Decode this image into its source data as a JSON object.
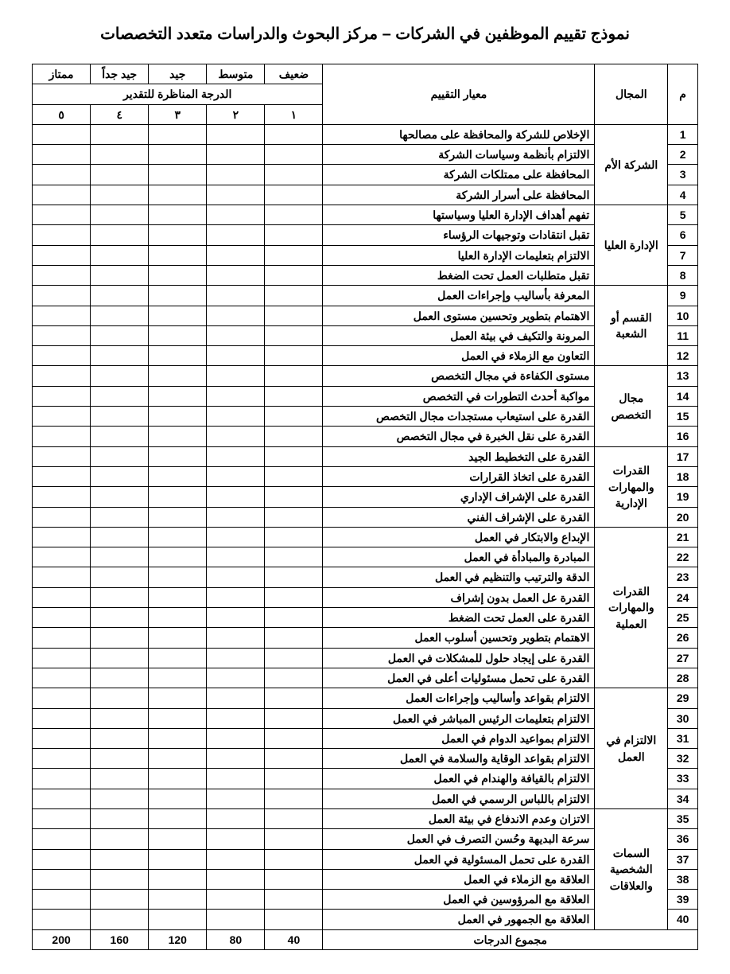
{
  "title": "نموذج تقييم الموظفين في الشركات – مركز البحوث والدراسات متعدد التخصصات",
  "headers": {
    "num": "م",
    "domain": "المجال",
    "criterion": "معيار التقييم",
    "corresponding": "الدرجة المناظرة للتقدير",
    "ratings": [
      "ضعيف",
      "متوسط",
      "جيد",
      "جيد جداً",
      "ممتاز"
    ],
    "numbers": [
      "١",
      "٢",
      "٣",
      "٤",
      "٥"
    ]
  },
  "groups": [
    {
      "domain": "الشركة الأم",
      "rows": [
        {
          "n": "1",
          "c": "الإخلاص للشركة والمحافظة على مصالحها"
        },
        {
          "n": "2",
          "c": "الالتزام بأنظمة وسياسات الشركة"
        },
        {
          "n": "3",
          "c": "المحافظة على ممتلكات الشركة"
        },
        {
          "n": "4",
          "c": "المحافظة على أسرار الشركة"
        }
      ]
    },
    {
      "domain": "الإدارة العليا",
      "rows": [
        {
          "n": "5",
          "c": "تفهم أهداف الإدارة العليا وسياستها"
        },
        {
          "n": "6",
          "c": "تقبل انتقادات وتوجيهات الرؤساء"
        },
        {
          "n": "7",
          "c": "الالتزام بتعليمات الإدارة العليا"
        },
        {
          "n": "8",
          "c": "تقبل متطلبات العمل تحت الضغط"
        }
      ]
    },
    {
      "domain": "القسم أو الشعبة",
      "rows": [
        {
          "n": "9",
          "c": "المعرفة بأساليب وإجراءات العمل"
        },
        {
          "n": "10",
          "c": "الاهتمام بتطوير وتحسين مستوى العمل"
        },
        {
          "n": "11",
          "c": "المرونة والتكيف في بيئة العمل"
        },
        {
          "n": "12",
          "c": "التعاون مع الزملاء في العمل"
        }
      ]
    },
    {
      "domain": "مجال التخصص",
      "rows": [
        {
          "n": "13",
          "c": "مستوى الكفاءة في مجال التخصص"
        },
        {
          "n": "14",
          "c": "مواكبة أحدث التطورات في التخصص"
        },
        {
          "n": "15",
          "c": "القدرة على استيعاب مستجدات مجال التخصص"
        },
        {
          "n": "16",
          "c": "القدرة على نقل الخبرة في مجال التخصص"
        }
      ]
    },
    {
      "domain": "القدرات والمهارات الإدارية",
      "rows": [
        {
          "n": "17",
          "c": "القدرة على التخطيط الجيد"
        },
        {
          "n": "18",
          "c": "القدرة على اتخاذ القرارات"
        },
        {
          "n": "19",
          "c": "القدرة على الإشراف الإداري"
        },
        {
          "n": "20",
          "c": "القدرة على الإشراف الفني"
        }
      ]
    },
    {
      "domain": "القدرات والمهارات العملية",
      "rows": [
        {
          "n": "21",
          "c": "الإبداع والابتكار في العمل"
        },
        {
          "n": "22",
          "c": "المبادرة والمبادأة في العمل"
        },
        {
          "n": "23",
          "c": "الدقة والترتيب والتنظيم في العمل"
        },
        {
          "n": "24",
          "c": "القدرة عل العمل بدون إشراف"
        },
        {
          "n": "25",
          "c": "القدرة على العمل تحت الضغط"
        },
        {
          "n": "26",
          "c": "الاهتمام بتطوير وتحسين أسلوب العمل"
        },
        {
          "n": "27",
          "c": "القدرة على إيجاد حلول للمشكلات في العمل"
        },
        {
          "n": "28",
          "c": "القدرة على تحمل مسئوليات أعلى في العمل"
        }
      ]
    },
    {
      "domain": "الالتزام في العمل",
      "rows": [
        {
          "n": "29",
          "c": "الالتزام بقواعد وأساليب وإجراءات العمل"
        },
        {
          "n": "30",
          "c": "الالتزام بتعليمات الرئيس المباشر في العمل"
        },
        {
          "n": "31",
          "c": "الالتزام بمواعيد الدوام في العمل"
        },
        {
          "n": "32",
          "c": "الالتزام بقواعد الوقاية والسلامة في العمل"
        },
        {
          "n": "33",
          "c": "الالتزام بالقيافة والهندام في العمل"
        },
        {
          "n": "34",
          "c": "الالتزام باللباس الرسمي في العمل"
        }
      ]
    },
    {
      "domain": "السمات الشخصية والعلاقات",
      "rows": [
        {
          "n": "35",
          "c": "الاتزان وعدم الاندفاع في بيئة العمل"
        },
        {
          "n": "36",
          "c": "سرعة البديهة وحُسن التصرف في العمل"
        },
        {
          "n": "37",
          "c": "القدرة على تحمل المسئولية في العمل"
        },
        {
          "n": "38",
          "c": "العلاقة مع الزملاء في العمل"
        },
        {
          "n": "39",
          "c": "العلاقة مع المرؤوسين في العمل"
        },
        {
          "n": "40",
          "c": "العلاقة مع الجمهور في العمل"
        }
      ]
    }
  ],
  "footer": {
    "label": "مجموع الدرجات",
    "totals": [
      "40",
      "80",
      "120",
      "160",
      "200"
    ]
  },
  "style": {
    "background": "#ffffff",
    "text": "#000000",
    "border": "#000000"
  }
}
